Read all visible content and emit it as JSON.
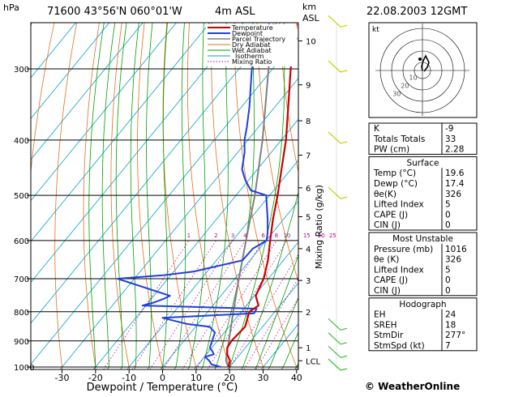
{
  "header": {
    "hpa": "hPa",
    "station": "71600  43°56'N  060°01'W",
    "elevation": "4m  ASL",
    "km": "km",
    "asl": "ASL",
    "datetime": "22.08.2003  12GMT"
  },
  "footer": {
    "copyright": "© WeatherOnline"
  },
  "colors": {
    "temperature": "#cc0000",
    "dewpoint": "#1f3fe0",
    "parcel": "#808080",
    "dry_adiabat": "#e07020",
    "wet_adiabat": "#00a000",
    "isotherm": "#00a0d0",
    "mixing_ratio": "#c000a0",
    "wind": "#c8d000",
    "wind_low": "#40c040"
  },
  "chart_data": {
    "type": "line",
    "title": "",
    "xlabel": "Dewpoint / Temperature (°C)",
    "ylabel": "Mixing Ratio (g/kg)",
    "xlim": [
      -35,
      40
    ],
    "ylim_hpa": [
      1000,
      250
    ],
    "skew": "skew-T log-p",
    "pressure_levels": [
      300,
      400,
      500,
      600,
      700,
      800,
      900,
      1000
    ],
    "temp_ticks": [
      -30,
      -20,
      -10,
      0,
      10,
      20,
      30,
      40
    ],
    "km_ticks": [
      {
        "label": "1",
        "p": 925
      },
      {
        "label": "2",
        "p": 800
      },
      {
        "label": "3",
        "p": 705
      },
      {
        "label": "4",
        "p": 620
      },
      {
        "label": "5",
        "p": 545
      },
      {
        "label": "6",
        "p": 485
      },
      {
        "label": "7",
        "p": 425
      },
      {
        "label": "8",
        "p": 370
      },
      {
        "label": "9",
        "p": 320
      },
      {
        "label": "10",
        "p": 268
      },
      {
        "label": "LCL",
        "p": 975
      }
    ],
    "mixing_ratio_labels": [
      "1",
      "2",
      "3",
      "4",
      "6",
      "8",
      "10",
      "15",
      "20",
      "25"
    ],
    "legend": [
      "Temperature",
      "Dewpoint",
      "Parcel Trajectory",
      "Dry Adiabat",
      "Wet Adiabat",
      "Isotherm",
      "Mixing Ratio"
    ],
    "legend_position": "top-right",
    "series": [
      {
        "name": "Temperature",
        "points": [
          [
            1000,
            19.6
          ],
          [
            975,
            18.6
          ],
          [
            950,
            16.2
          ],
          [
            925,
            14.6
          ],
          [
            900,
            14.2
          ],
          [
            850,
            14.8
          ],
          [
            800,
            12.4
          ],
          [
            780,
            13.6
          ],
          [
            750,
            10.4
          ],
          [
            700,
            8.6
          ],
          [
            650,
            5.4
          ],
          [
            600,
            1.2
          ],
          [
            550,
            -3.2
          ],
          [
            500,
            -7.6
          ],
          [
            450,
            -12.8
          ],
          [
            400,
            -18.6
          ],
          [
            350,
            -26.0
          ],
          [
            300,
            -34.6
          ],
          [
            270,
            -40.0
          ],
          [
            250,
            -43.8
          ]
        ]
      },
      {
        "name": "Dewpoint",
        "points": [
          [
            1000,
            17.4
          ],
          [
            990,
            14.0
          ],
          [
            975,
            12.4
          ],
          [
            960,
            10.2
          ],
          [
            950,
            12.2
          ],
          [
            940,
            11.2
          ],
          [
            925,
            9.4
          ],
          [
            900,
            8.4
          ],
          [
            870,
            7.2
          ],
          [
            850,
            4.2
          ],
          [
            840,
            -3.4
          ],
          [
            820,
            -12.0
          ],
          [
            805,
            14.2
          ],
          [
            790,
            13.8
          ],
          [
            780,
            -21.0
          ],
          [
            770,
            -18.2
          ],
          [
            760,
            -16.4
          ],
          [
            750,
            -15.2
          ],
          [
            700,
            -35.0
          ],
          [
            690,
            -22.0
          ],
          [
            680,
            -14.0
          ],
          [
            650,
            -2.2
          ],
          [
            620,
            -2.0
          ],
          [
            600,
            0.2
          ],
          [
            580,
            -1.6
          ],
          [
            550,
            -4.8
          ],
          [
            500,
            -11.0
          ],
          [
            490,
            -16.8
          ],
          [
            470,
            -21.0
          ],
          [
            450,
            -24.6
          ],
          [
            420,
            -28.0
          ],
          [
            400,
            -31.0
          ],
          [
            380,
            -33.4
          ],
          [
            350,
            -37.6
          ],
          [
            300,
            -46.2
          ],
          [
            280,
            -49.0
          ],
          [
            250,
            -52.0
          ]
        ]
      },
      {
        "name": "Parcel Trajectory",
        "points": [
          [
            1000,
            19.6
          ],
          [
            975,
            17.4
          ],
          [
            950,
            16.0
          ],
          [
            900,
            13.4
          ],
          [
            850,
            10.6
          ],
          [
            800,
            7.6
          ],
          [
            700,
            1.2
          ],
          [
            600,
            -6.0
          ],
          [
            500,
            -14.4
          ],
          [
            400,
            -25.6
          ],
          [
            300,
            -41.2
          ],
          [
            250,
            -50.8
          ]
        ]
      }
    ],
    "wind_barbs": [
      {
        "p": 250
      },
      {
        "p": 300
      },
      {
        "p": 400
      },
      {
        "p": 500
      },
      {
        "p": 850
      },
      {
        "p": 900
      },
      {
        "p": 950
      },
      {
        "p": 1000
      }
    ]
  },
  "hodograph": {
    "label": "kt",
    "ring_labels": [
      "10",
      "20",
      "30"
    ]
  },
  "indices": {
    "top": [
      {
        "label": "K",
        "value": "-9"
      },
      {
        "label": "Totals Totals",
        "value": "33"
      },
      {
        "label": "PW (cm)",
        "value": "2.28"
      }
    ],
    "surface_title": "Surface",
    "surface": [
      {
        "label": "Temp (°C)",
        "value": "19.6"
      },
      {
        "label": "Dewp (°C)",
        "value": "17.4"
      },
      {
        "label": "θe(K)",
        "value": "326"
      },
      {
        "label": "Lifted Index",
        "value": "5"
      },
      {
        "label": "CAPE (J)",
        "value": "0"
      },
      {
        "label": "CIN (J)",
        "value": "0"
      }
    ],
    "unstable_title": "Most Unstable",
    "unstable": [
      {
        "label": "Pressure (mb)",
        "value": "1016"
      },
      {
        "label": "θe (K)",
        "value": "326"
      },
      {
        "label": "Lifted Index",
        "value": "5"
      },
      {
        "label": "CAPE (J)",
        "value": "0"
      },
      {
        "label": "CIN (J)",
        "value": "0"
      }
    ],
    "hodo_title": "Hodograph",
    "hodo": [
      {
        "label": "EH",
        "value": "24"
      },
      {
        "label": "SREH",
        "value": "18"
      },
      {
        "label": "StmDir",
        "value": "277°"
      },
      {
        "label": "StmSpd (kt)",
        "value": "7"
      }
    ]
  }
}
